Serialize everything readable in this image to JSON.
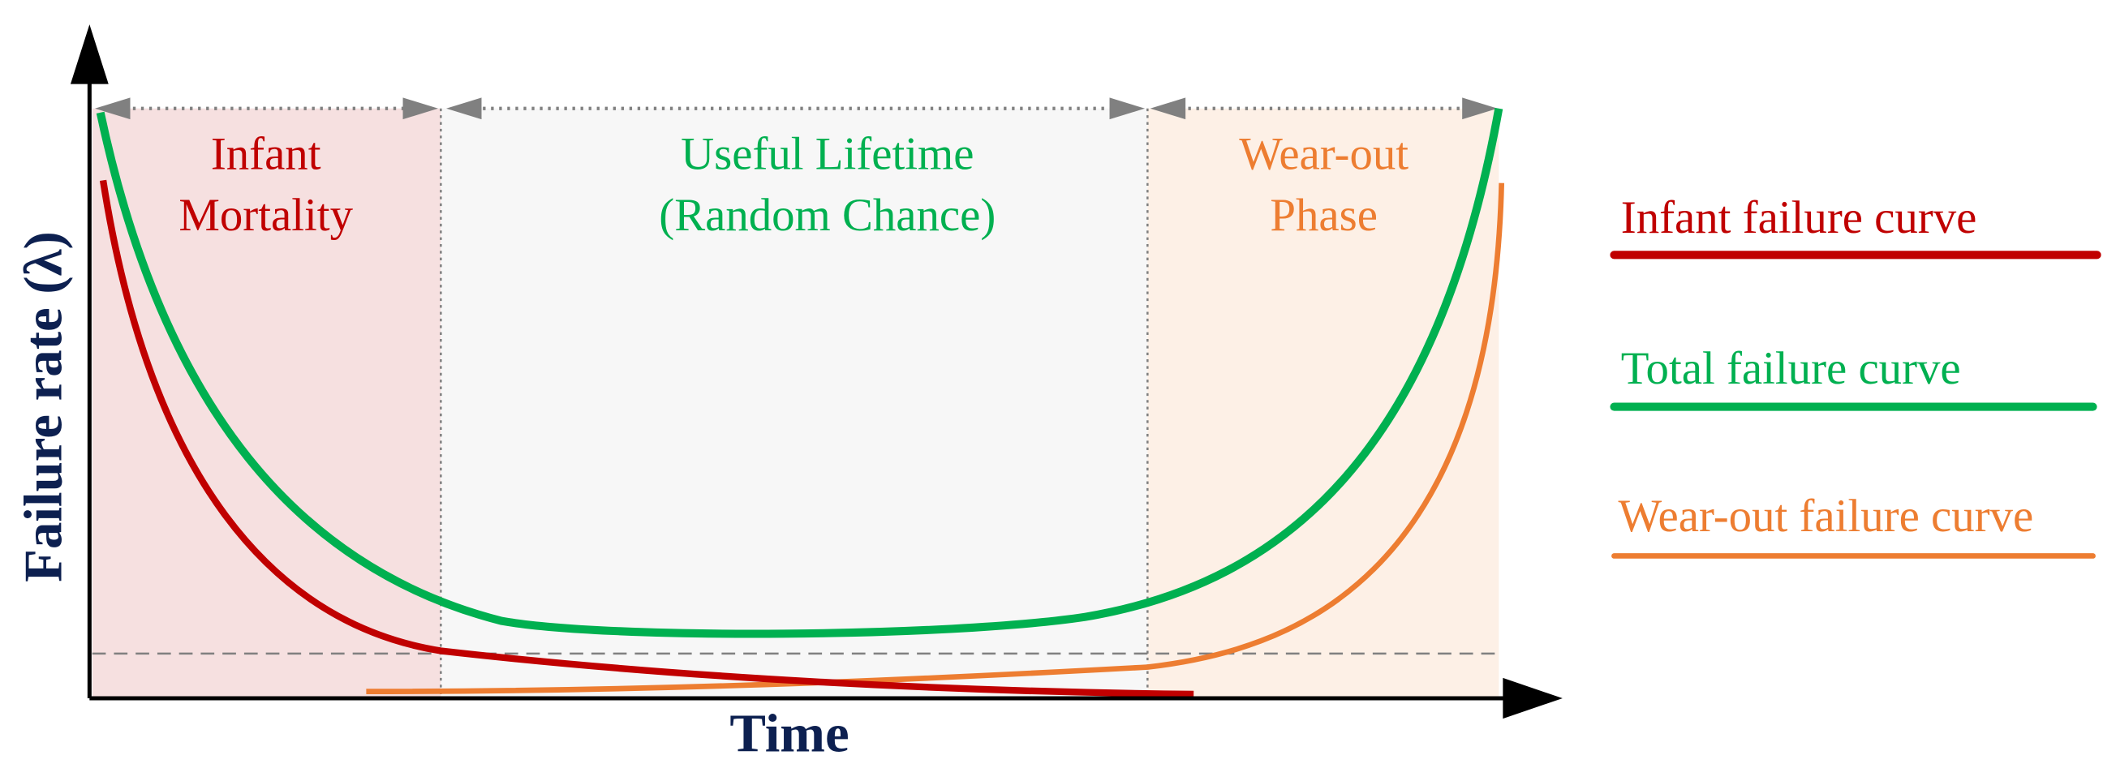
{
  "axes": {
    "y_label": "Failure rate (λ)",
    "x_label": "Time"
  },
  "regions": [
    {
      "lines": [
        "Infant",
        "Mortality"
      ]
    },
    {
      "lines": [
        "Useful Lifetime",
        "(Random Chance)"
      ]
    },
    {
      "lines": [
        "Wear-out",
        "Phase"
      ]
    }
  ],
  "legend": [
    "Infant failure curve",
    "Total failure curve",
    "Wear-out failure curve"
  ]
}
